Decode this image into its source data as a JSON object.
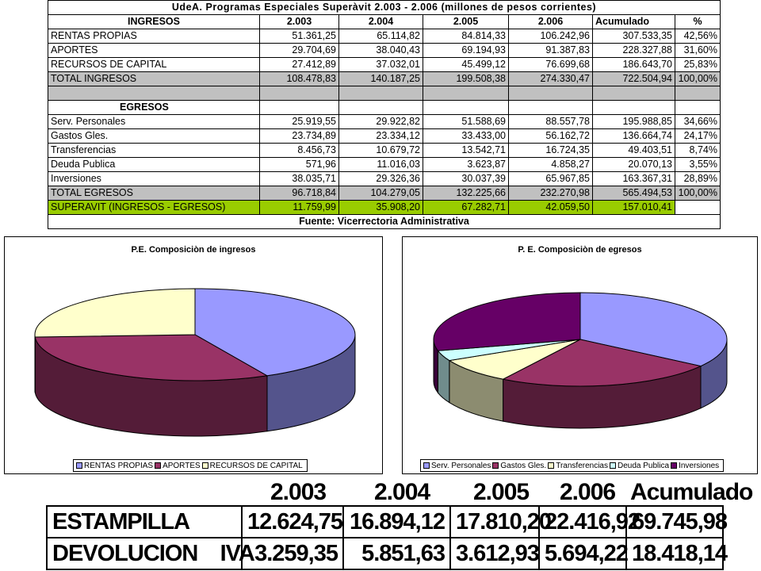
{
  "table": {
    "title": "UdeA. Programas Especiales Superàvit 2.003 - 2.006 (millones de pesos corrientes)",
    "columns": [
      "INGRESOS",
      "2.003",
      "2.004",
      "2.005",
      "2.006",
      "Acumulado",
      "%"
    ],
    "ingresos": [
      {
        "label": "RENTAS PROPIAS",
        "values": [
          "51.361,25",
          "65.114,82",
          "84.814,33",
          "106.242,96",
          "307.533,35",
          "42,56%"
        ]
      },
      {
        "label": "APORTES",
        "values": [
          "29.704,69",
          "38.040,43",
          "69.194,93",
          "91.387,83",
          "228.327,88",
          "31,60%"
        ]
      },
      {
        "label": "RECURSOS DE CAPITAL",
        "values": [
          "27.412,89",
          "37.032,01",
          "45.499,12",
          "76.699,68",
          "186.643,70",
          "25,83%"
        ]
      }
    ],
    "total_ingresos": {
      "label": "TOTAL INGRESOS",
      "values": [
        "108.478,83",
        "140.187,25",
        "199.508,38",
        "274.330,47",
        "722.504,94",
        "100,00%"
      ]
    },
    "egresos_header": "EGRESOS",
    "egresos": [
      {
        "label": "Serv. Personales",
        "values": [
          "25.919,55",
          "29.922,82",
          "51.588,69",
          "88.557,78",
          "195.988,85",
          "34,66%"
        ]
      },
      {
        "label": "Gastos Gles.",
        "values": [
          "23.734,89",
          "23.334,12",
          "33.433,00",
          "56.162,72",
          "136.664,74",
          "24,17%"
        ]
      },
      {
        "label": "Transferencias",
        "values": [
          "8.456,73",
          "10.679,72",
          "13.542,71",
          "16.724,35",
          "49.403,51",
          "8,74%"
        ]
      },
      {
        "label": "Deuda Publica",
        "values": [
          "571,96",
          "11.016,03",
          "3.623,87",
          "4.858,27",
          "20.070,13",
          "3,55%"
        ]
      },
      {
        "label": "Inversiones",
        "values": [
          "38.035,71",
          "29.326,36",
          "30.037,39",
          "65.967,85",
          "163.367,31",
          "28,89%"
        ]
      }
    ],
    "total_egresos": {
      "label": "TOTAL EGRESOS",
      "values": [
        "96.718,84",
        "104.279,05",
        "132.225,66",
        "232.270,98",
        "565.494,53",
        "100,00%"
      ]
    },
    "superavit": {
      "label": "SUPERAVIT (INGRESOS - EGRESOS)",
      "values": [
        "11.759,99",
        "35.908,20",
        "67.282,71",
        "42.059,50",
        "157.010,41",
        ""
      ]
    },
    "source": "Fuente: Vicerrectoria Administrativa"
  },
  "chart_data": [
    {
      "type": "pie",
      "title": "P.E. Composiciòn de ingresos",
      "labels": [
        "RENTAS PROPIAS",
        "APORTES",
        "RECURSOS DE CAPITAL"
      ],
      "values": [
        307533.35,
        228327.88,
        186643.7
      ],
      "colors": [
        "#9999ff",
        "#993366",
        "#ffffcc"
      ],
      "legend_position": "bottom"
    },
    {
      "type": "pie",
      "title": "P. E. Composiciòn de egresos",
      "labels": [
        "Serv. Personales",
        "Gastos Gles.",
        "Transferencias",
        "Deuda Publica",
        "Inversiones"
      ],
      "values": [
        195988.85,
        136664.74,
        49403.51,
        20070.13,
        163367.31
      ],
      "colors": [
        "#9999ff",
        "#993366",
        "#ffffcc",
        "#ccffff",
        "#660066"
      ],
      "legend_position": "bottom"
    }
  ],
  "bottom_table": {
    "headers": [
      "2.003",
      "2.004",
      "2.005",
      "2.006",
      "Acumulado"
    ],
    "rows": [
      {
        "label": "ESTAMPILLA",
        "values": [
          "12.624,75",
          "16.894,12",
          "17.810,20",
          "22.416,92",
          "69.745,98"
        ]
      },
      {
        "label": "DEVOLUCION    IVA",
        "values": [
          "3.259,35",
          "5.851,63",
          "3.612,93",
          "5.694,22",
          "18.418,14"
        ]
      }
    ]
  }
}
